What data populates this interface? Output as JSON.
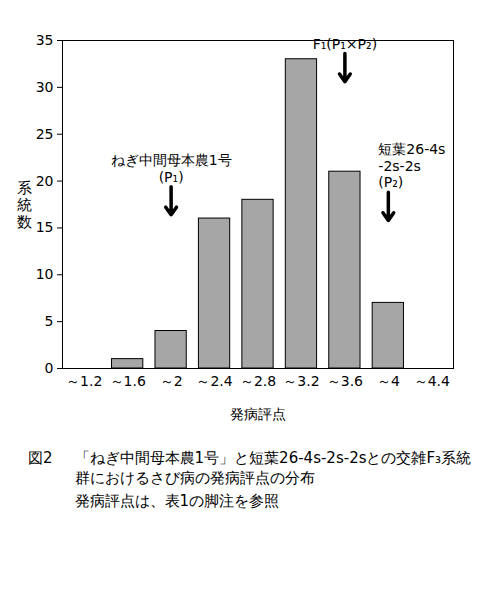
{
  "chart_data": {
    "type": "bar",
    "figure_label": "図2",
    "title": "「ねぎ中間母本農1号」と短葉26-4s-2s-2sとの交雑F₃系統群におけるさび病の発病評点の分布",
    "subtitle": "発病評点は、表1の脚注を参照",
    "x_label": "発病評点",
    "y_label": "系統数",
    "categories": [
      "～1.2",
      "～1.6",
      "～2",
      "～2.4",
      "～2.8",
      "～3.2",
      "～3.6",
      "～4",
      "～4.4"
    ],
    "values": [
      0,
      1,
      4,
      16,
      18,
      33,
      21,
      7,
      0
    ],
    "color": "#a6a6a6",
    "ylim": [
      0,
      35
    ],
    "yticks": [
      0,
      5,
      10,
      15,
      20,
      25,
      30,
      35
    ],
    "grid": false,
    "annotations": [
      {
        "text": [
          "ねぎ中間母本農1号",
          "(P₁)"
        ],
        "x": "～2",
        "y": 16.4
      },
      {
        "text": [
          "F₁(P₁×P₂)"
        ],
        "x": "～3.6",
        "y": 30.6
      },
      {
        "text": [
          "短葉26-4s",
          "-2s-2s",
          "(P₂)"
        ],
        "x": "～4",
        "y": 15.8
      }
    ]
  }
}
